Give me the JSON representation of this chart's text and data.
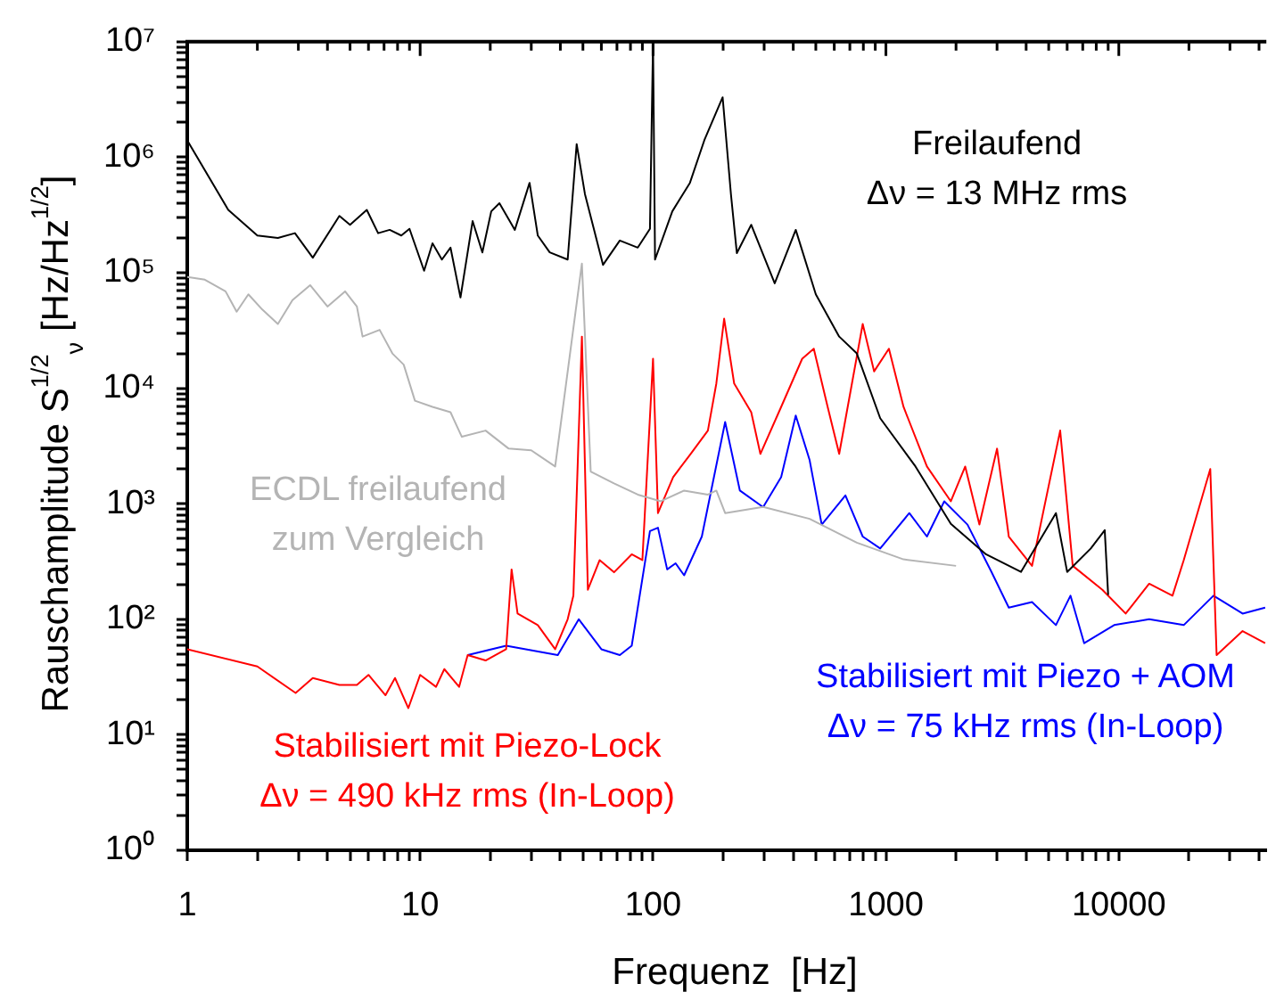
{
  "chart_data": {
    "type": "line",
    "xlabel": "Frequenz  [Hz]",
    "ylabel": "Rauschamplitude S$^{1/2}$$_{ν}$ [Hz/Hz$^{1/2}$]",
    "log": "xy",
    "grid": false,
    "legend": false,
    "marker": "none",
    "line_style": "solid",
    "xlim": [
      1,
      43000
    ],
    "ylim": [
      1,
      10000000
    ],
    "xticks": [
      1,
      {
        "value": 2,
        "label": null
      },
      {
        "value": 3,
        "label": null
      },
      {
        "value": 4,
        "label": null
      },
      {
        "value": 5,
        "label": null
      },
      {
        "value": 6,
        "label": null
      },
      {
        "value": 7,
        "label": null
      },
      {
        "value": 8,
        "label": null
      },
      {
        "value": 9,
        "label": null
      },
      10,
      {
        "value": 20,
        "label": null
      },
      {
        "value": 30,
        "label": null
      },
      {
        "value": 40,
        "label": null
      },
      {
        "value": 50,
        "label": null
      },
      {
        "value": 60,
        "label": null
      },
      {
        "value": 70,
        "label": null
      },
      {
        "value": 80,
        "label": null
      },
      {
        "value": 90,
        "label": null
      },
      100,
      {
        "value": 200,
        "label": null
      },
      {
        "value": 300,
        "label": null
      },
      {
        "value": 400,
        "label": null
      },
      {
        "value": 500,
        "label": null
      },
      {
        "value": 600,
        "label": null
      },
      {
        "value": 700,
        "label": null
      },
      {
        "value": 800,
        "label": null
      },
      {
        "value": 900,
        "label": null
      },
      1000,
      {
        "value": 2000,
        "label": null
      },
      {
        "value": 3000,
        "label": null
      },
      {
        "value": 4000,
        "label": null
      },
      {
        "value": 5000,
        "label": null
      },
      {
        "value": 6000,
        "label": null
      },
      {
        "value": 7000,
        "label": null
      },
      {
        "value": 8000,
        "label": null
      },
      {
        "value": 9000,
        "label": null
      },
      10000,
      {
        "value": 20000,
        "label": null
      },
      {
        "value": 30000,
        "label": null
      },
      {
        "value": 40000,
        "label": null
      }
    ],
    "yticks": [
      {
        "value": 1,
        "label": "10⁰"
      },
      {
        "value": 2,
        "label": null
      },
      {
        "value": 3,
        "label": null
      },
      {
        "value": 4,
        "label": null
      },
      {
        "value": 5,
        "label": null
      },
      {
        "value": 6,
        "label": null
      },
      {
        "value": 7,
        "label": null
      },
      {
        "value": 8,
        "label": null
      },
      {
        "value": 9,
        "label": null
      },
      {
        "value": 10,
        "label": "10¹"
      },
      {
        "value": 20,
        "label": null
      },
      {
        "value": 30,
        "label": null
      },
      {
        "value": 40,
        "label": null
      },
      {
        "value": 50,
        "label": null
      },
      {
        "value": 60,
        "label": null
      },
      {
        "value": 70,
        "label": null
      },
      {
        "value": 80,
        "label": null
      },
      {
        "value": 90,
        "label": null
      },
      {
        "value": 100,
        "label": "10²"
      },
      {
        "value": 200,
        "label": null
      },
      {
        "value": 300,
        "label": null
      },
      {
        "value": 400,
        "label": null
      },
      {
        "value": 500,
        "label": null
      },
      {
        "value": 600,
        "label": null
      },
      {
        "value": 700,
        "label": null
      },
      {
        "value": 800,
        "label": null
      },
      {
        "value": 900,
        "label": null
      },
      {
        "value": 1000,
        "label": "10³"
      },
      {
        "value": 2000,
        "label": null
      },
      {
        "value": 3000,
        "label": null
      },
      {
        "value": 4000,
        "label": null
      },
      {
        "value": 5000,
        "label": null
      },
      {
        "value": 6000,
        "label": null
      },
      {
        "value": 7000,
        "label": null
      },
      {
        "value": 8000,
        "label": null
      },
      {
        "value": 9000,
        "label": null
      },
      {
        "value": 10000,
        "label": "10⁴"
      },
      {
        "value": 20000,
        "label": null
      },
      {
        "value": 30000,
        "label": null
      },
      {
        "value": 40000,
        "label": null
      },
      {
        "value": 50000,
        "label": null
      },
      {
        "value": 60000,
        "label": null
      },
      {
        "value": 70000,
        "label": null
      },
      {
        "value": 80000,
        "label": null
      },
      {
        "value": 90000,
        "label": null
      },
      {
        "value": 100000,
        "label": "10⁵"
      },
      {
        "value": 200000,
        "label": null
      },
      {
        "value": 300000,
        "label": null
      },
      {
        "value": 400000,
        "label": null
      },
      {
        "value": 500000,
        "label": null
      },
      {
        "value": 600000,
        "label": null
      },
      {
        "value": 700000,
        "label": null
      },
      {
        "value": 800000,
        "label": null
      },
      {
        "value": 900000,
        "label": null
      },
      {
        "value": 1000000,
        "label": "10⁶"
      },
      {
        "value": 2000000,
        "label": null
      },
      {
        "value": 3000000,
        "label": null
      },
      {
        "value": 4000000,
        "label": null
      },
      {
        "value": 5000000,
        "label": null
      },
      {
        "value": 6000000,
        "label": null
      },
      {
        "value": 7000000,
        "label": null
      },
      {
        "value": 8000000,
        "label": null
      },
      {
        "value": 9000000,
        "label": null
      },
      {
        "value": 10000000,
        "label": "10⁷"
      }
    ],
    "series": [
      {
        "name": "ECDL freilaufend zum Vergleich",
        "color": "#b4b4b4",
        "x": [
          1,
          1.19,
          1.46,
          1.63,
          1.83,
          2.1,
          2.45,
          2.83,
          3.37,
          4,
          4.76,
          5.35,
          5.66,
          6.7,
          7.6,
          8.5,
          9.5,
          11.3,
          13.5,
          15.1,
          19.1,
          24,
          30,
          38,
          49.5,
          54,
          68,
          86,
          108,
          136,
          172,
          187,
          204,
          297,
          470,
          750,
          1190,
          2000
        ],
        "values": [
          92000,
          87000,
          69000,
          46000,
          65000,
          48000,
          36000,
          58000,
          78000,
          51000,
          69000,
          51000,
          28000,
          32000,
          20000,
          16000,
          7800,
          6900,
          6200,
          3800,
          4300,
          3000,
          2900,
          2100,
          120000,
          1900,
          1500,
          1200,
          1050,
          1300,
          1200,
          1300,
          830,
          940,
          740,
          460,
          330,
          290
        ]
      },
      {
        "name": "Freilaufend",
        "color": "#000000",
        "x": [
          1,
          1.5,
          2,
          2.45,
          2.9,
          3.46,
          4.5,
          5,
          5.9,
          6.6,
          7.4,
          8.3,
          9,
          10.4,
          11.3,
          12.4,
          13.5,
          14.9,
          16.8,
          18.5,
          20.2,
          21.9,
          25.5,
          29.5,
          32,
          36,
          43,
          47,
          51,
          61,
          72,
          86,
          97,
          100,
          102,
          121,
          144,
          166,
          199,
          216,
          229,
          264,
          333,
          410,
          500,
          630,
          750,
          945,
          1340,
          1900,
          2690,
          3800,
          5370,
          6000,
          7580,
          8700,
          9000
        ],
        "values": [
          1400000,
          350000,
          210000,
          200000,
          220000,
          135000,
          310000,
          260000,
          350000,
          220000,
          235000,
          210000,
          240000,
          104000,
          180000,
          130000,
          165000,
          61000,
          280000,
          150000,
          340000,
          400000,
          235000,
          600000,
          210000,
          150000,
          130000,
          1300000,
          480000,
          117000,
          190000,
          165000,
          240000,
          10000000,
          130000,
          340000,
          600000,
          1400000,
          3300000,
          480000,
          148000,
          260000,
          81000,
          235000,
          65000,
          28000,
          20000,
          5500,
          2100,
          670,
          365,
          257,
          830,
          257,
          410,
          590,
          162
        ]
      },
      {
        "name": "Stabilisiert mit Piezo-Lock",
        "color": "#ff0000",
        "x": [
          1,
          2,
          2.92,
          3.46,
          4.5,
          5.35,
          6,
          7.1,
          7.8,
          8.9,
          10,
          11.7,
          12.7,
          14.7,
          16,
          19.1,
          23.4,
          24.7,
          26.2,
          32,
          38,
          43,
          45.5,
          49.5,
          52.5,
          59,
          68,
          81,
          90,
          100,
          105,
          122,
          145,
          172,
          187,
          202,
          223,
          264,
          289,
          355,
          437,
          490,
          562,
          630,
          795,
          890,
          1030,
          1190,
          1500,
          1900,
          2190,
          2520,
          3000,
          3370,
          4240,
          5600,
          6340,
          8500,
          10700,
          13500,
          17000,
          19000,
          24700,
          26300,
          34000,
          42500
        ],
        "values": [
          55,
          39,
          23,
          31,
          27,
          27,
          33,
          22,
          31,
          17,
          33,
          26,
          37,
          26,
          49,
          44,
          55,
          270,
          112,
          89,
          55,
          100,
          160,
          28000,
          180,
          325,
          255,
          365,
          325,
          18000,
          830,
          1700,
          2700,
          4300,
          11000,
          40000,
          11000,
          6200,
          2700,
          6900,
          18000,
          22000,
          6900,
          2700,
          36000,
          14000,
          22000,
          6900,
          2100,
          1050,
          2100,
          660,
          3000,
          520,
          290,
          4300,
          290,
          180,
          112,
          203,
          160,
          325,
          2000,
          49,
          79,
          62
        ]
      },
      {
        "name": "Stabilisiert mit Piezo + AOM",
        "color": "#0000ff",
        "x": [
          16,
          23.4,
          39,
          48,
          60,
          72,
          81,
          97,
          105,
          115,
          125,
          136,
          162,
          204,
          236,
          297,
          355,
          410,
          470,
          530,
          670,
          795,
          945,
          1260,
          1500,
          1780,
          2240,
          2840,
          3370,
          4240,
          5370,
          6200,
          7100,
          9550,
          13500,
          19000,
          25500,
          34000,
          42500
        ],
        "values": [
          49,
          59,
          49,
          100,
          55,
          49,
          59,
          580,
          620,
          270,
          305,
          240,
          520,
          5100,
          1300,
          935,
          1700,
          5800,
          2400,
          660,
          1180,
          520,
          410,
          830,
          520,
          1050,
          660,
          257,
          126,
          141,
          89,
          160,
          62,
          89,
          100,
          89,
          160,
          112,
          126
        ]
      }
    ],
    "annotations": [
      "Δν = 13 MHz rms",
      "Δν = 490 kHz rms (In-Loop)",
      "Δν = 75 kHz rms (In-Loop)"
    ]
  }
}
